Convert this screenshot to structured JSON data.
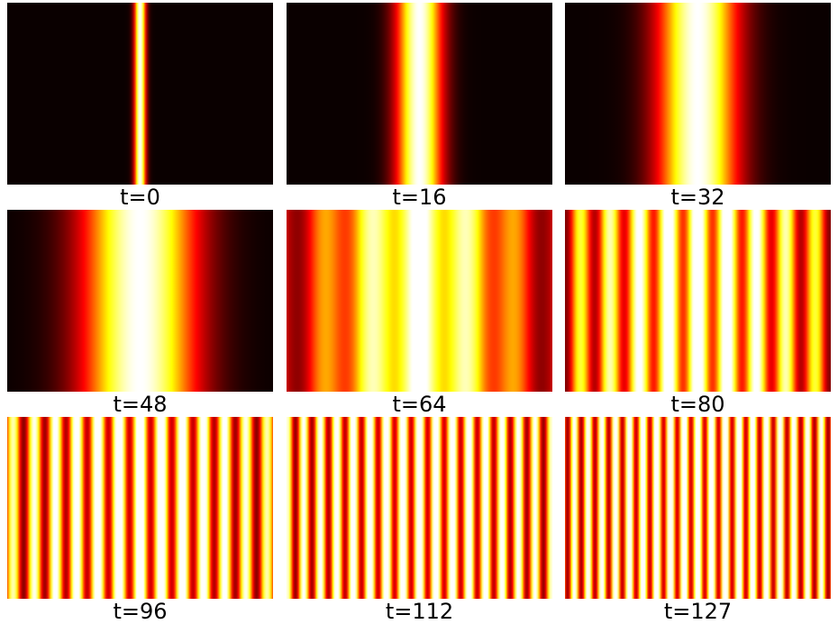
{
  "chart_data": {
    "type": "heatmap",
    "description_colormap": "hot",
    "colormap_stops": [
      "#000000",
      "#0b0000",
      "#ff0000",
      "#ffff00",
      "#ffffff"
    ],
    "panels": [
      {
        "label": "t=0",
        "t": 0
      },
      {
        "label": "t=16",
        "t": 16
      },
      {
        "label": "t=32",
        "t": 32
      },
      {
        "label": "t=48",
        "t": 48
      },
      {
        "label": "t=64",
        "t": 64
      },
      {
        "label": "t=80",
        "t": 80
      },
      {
        "label": "t=96",
        "t": 96
      },
      {
        "label": "t=112",
        "t": 112
      },
      {
        "label": "t=127",
        "t": 127
      }
    ]
  }
}
